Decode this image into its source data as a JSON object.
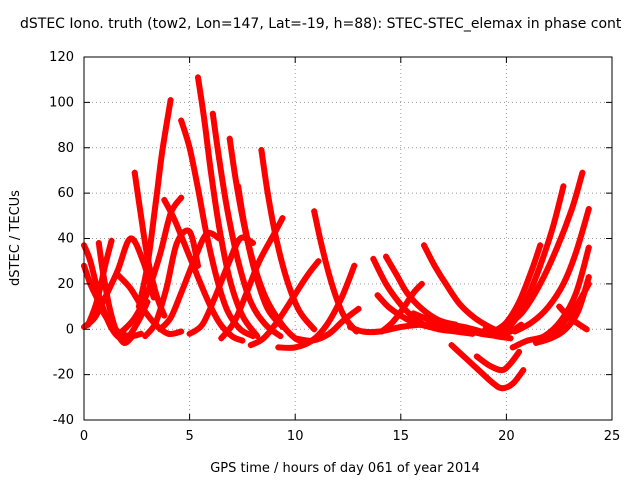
{
  "chart_data": {
    "type": "line",
    "title": "dSTEC Iono. truth (tow2, Lon=147, Lat=-19, h=88): STEC-STEC_elemax in phase cont",
    "xlabel": "GPS time / hours of day 061 of year 2014",
    "ylabel": "dSTEC  / TECUs",
    "xlim": [
      0,
      25
    ],
    "ylim": [
      -40,
      120
    ],
    "x_ticks": [
      "0",
      "5",
      "10",
      "15",
      "20",
      "25"
    ],
    "y_ticks": [
      "-40",
      "-20",
      "0",
      "20",
      "40",
      "60",
      "80",
      "100",
      "120"
    ],
    "grid": true,
    "series_color": "#ff0000",
    "series": [
      {
        "x": [
          0.0,
          0.3,
          0.8,
          1.4,
          2.0,
          2.6,
          3.0
        ],
        "y": [
          37,
          30,
          12,
          -1,
          -4,
          4,
          12
        ]
      },
      {
        "x": [
          0.0,
          0.5,
          1.0,
          1.6,
          2.2,
          2.8,
          3.3
        ],
        "y": [
          1,
          5,
          14,
          26,
          40,
          30,
          14
        ]
      },
      {
        "x": [
          0.0,
          0.3,
          0.6,
          1.0,
          1.6,
          2.2,
          2.7
        ],
        "y": [
          28,
          20,
          14,
          6,
          -1,
          -3,
          -2
        ]
      },
      {
        "x": [
          0.7,
          0.9,
          1.2,
          1.5,
          1.9,
          2.3
        ],
        "y": [
          38,
          25,
          10,
          0,
          -6,
          -3
        ]
      },
      {
        "x": [
          0.2,
          0.6,
          1.0,
          1.3
        ],
        "y": [
          2,
          12,
          28,
          39
        ]
      },
      {
        "x": [
          1.6,
          2.2,
          2.8,
          3.4,
          4.0,
          4.6
        ],
        "y": [
          24,
          18,
          9,
          2,
          -2,
          -1
        ]
      },
      {
        "x": [
          2.4,
          2.7,
          3.0,
          3.4,
          3.8
        ],
        "y": [
          69,
          50,
          32,
          16,
          6
        ]
      },
      {
        "x": [
          1.8,
          2.4,
          3.0,
          3.6,
          4.1,
          4.6
        ],
        "y": [
          -1,
          5,
          16,
          33,
          51,
          58
        ]
      },
      {
        "x": [
          3.8,
          4.3,
          5.0,
          5.8,
          6.4,
          7.0,
          7.5
        ],
        "y": [
          57,
          48,
          32,
          14,
          3,
          -3,
          -5
        ]
      },
      {
        "x": [
          2.6,
          3.0,
          3.4,
          3.7,
          4.1
        ],
        "y": [
          10,
          28,
          56,
          78,
          101
        ]
      },
      {
        "x": [
          2.9,
          3.4,
          3.9,
          4.4,
          5.0,
          5.4
        ],
        "y": [
          -3,
          3,
          18,
          38,
          43,
          28
        ]
      },
      {
        "x": [
          3.6,
          4.1,
          4.6,
          5.2,
          5.8,
          6.4
        ],
        "y": [
          0,
          5,
          16,
          30,
          42,
          40
        ]
      },
      {
        "x": [
          4.6,
          5.0,
          5.4,
          5.8,
          6.3,
          6.8,
          7.4,
          8.0
        ],
        "y": [
          92,
          80,
          62,
          42,
          22,
          8,
          0,
          -3
        ]
      },
      {
        "x": [
          5.4,
          5.7,
          6.0,
          6.4,
          6.9,
          7.5,
          8.2
        ],
        "y": [
          111,
          92,
          70,
          45,
          22,
          6,
          -3
        ]
      },
      {
        "x": [
          6.1,
          6.4,
          6.8,
          7.3,
          7.9,
          8.6,
          9.3
        ],
        "y": [
          95,
          75,
          52,
          30,
          12,
          2,
          -3
        ]
      },
      {
        "x": [
          6.9,
          7.2,
          7.6,
          8.1,
          8.7,
          9.4
        ],
        "y": [
          84,
          65,
          45,
          25,
          9,
          1
        ]
      },
      {
        "x": [
          7.3,
          7.6,
          8.0,
          8.6,
          9.3,
          10.0,
          10.6
        ],
        "y": [
          63,
          46,
          30,
          14,
          3,
          -4,
          -6
        ]
      },
      {
        "x": [
          8.4,
          8.7,
          9.1,
          9.6,
          10.2,
          10.9
        ],
        "y": [
          79,
          60,
          40,
          22,
          8,
          0
        ]
      },
      {
        "x": [
          5.0,
          5.6,
          6.2,
          6.8,
          7.4,
          8.0
        ],
        "y": [
          -2,
          2,
          14,
          28,
          40,
          38
        ]
      },
      {
        "x": [
          6.5,
          7.1,
          7.7,
          8.3,
          9.0,
          9.4
        ],
        "y": [
          -4,
          3,
          16,
          30,
          42,
          49
        ]
      },
      {
        "x": [
          7.9,
          8.5,
          9.2,
          9.9,
          10.6,
          11.1
        ],
        "y": [
          -7,
          -4,
          4,
          14,
          24,
          30
        ]
      },
      {
        "x": [
          10.9,
          11.3,
          11.8,
          12.3,
          12.9
        ],
        "y": [
          52,
          35,
          18,
          6,
          -1
        ]
      },
      {
        "x": [
          9.2,
          10.0,
          10.8,
          11.5,
          12.2,
          12.8
        ],
        "y": [
          -8,
          -8,
          -5,
          2,
          14,
          28
        ]
      },
      {
        "x": [
          10.0,
          10.8,
          11.6,
          12.3,
          13.0
        ],
        "y": [
          -4,
          -5,
          -2,
          4,
          9
        ]
      },
      {
        "x": [
          12.6,
          13.2,
          14.0,
          15.0,
          16.0,
          16.6
        ],
        "y": [
          1,
          -1,
          -1,
          1,
          2,
          1
        ]
      },
      {
        "x": [
          13.9,
          14.4,
          15.0,
          15.6,
          16.4,
          17.2
        ],
        "y": [
          15,
          10,
          6,
          3,
          1,
          0
        ]
      },
      {
        "x": [
          14.3,
          14.8,
          15.3,
          16.0,
          16.8,
          17.6
        ],
        "y": [
          32,
          24,
          16,
          9,
          4,
          2
        ]
      },
      {
        "x": [
          13.7,
          14.3,
          14.9,
          15.5,
          16.1,
          16.8,
          17.6,
          18.4
        ],
        "y": [
          31,
          20,
          12,
          6,
          2,
          0,
          -1,
          -2
        ]
      },
      {
        "x": [
          14.1,
          14.6,
          15.1,
          15.6,
          16.0
        ],
        "y": [
          -1,
          3,
          9,
          16,
          20
        ]
      },
      {
        "x": [
          16.1,
          16.6,
          17.2,
          17.8,
          18.5,
          19.2,
          19.9
        ],
        "y": [
          37,
          28,
          19,
          11,
          5,
          1,
          -2
        ]
      },
      {
        "x": [
          15.6,
          16.4,
          17.2,
          18.0,
          18.8,
          19.6
        ],
        "y": [
          7,
          4,
          2,
          0,
          -2,
          -3
        ]
      },
      {
        "x": [
          16.3,
          17.2,
          18.0,
          18.8,
          19.5,
          20.2
        ],
        "y": [
          4,
          2,
          1,
          -1,
          -3,
          -4
        ]
      },
      {
        "x": [
          17.4,
          18.1,
          18.8,
          19.4,
          19.8,
          20.3,
          20.8
        ],
        "y": [
          -7,
          -13,
          -19,
          -24,
          -26,
          -24,
          -18
        ]
      },
      {
        "x": [
          18.6,
          19.2,
          19.8,
          20.2,
          20.6
        ],
        "y": [
          -12,
          -16,
          -18,
          -15,
          -10
        ]
      },
      {
        "x": [
          19.4,
          20.0,
          20.6,
          21.2,
          21.6
        ],
        "y": [
          -1,
          3,
          12,
          26,
          37
        ]
      },
      {
        "x": [
          19.8,
          20.4,
          21.0,
          21.6,
          22.2,
          22.7
        ],
        "y": [
          -2,
          4,
          14,
          28,
          45,
          63
        ]
      },
      {
        "x": [
          20.1,
          20.8,
          21.6,
          22.4,
          23.1,
          23.6
        ],
        "y": [
          2,
          8,
          20,
          36,
          53,
          69
        ]
      },
      {
        "x": [
          20.4,
          21.2,
          22.0,
          22.7,
          23.3,
          23.9
        ],
        "y": [
          -1,
          3,
          10,
          20,
          34,
          53
        ]
      },
      {
        "x": [
          20.3,
          21.0,
          21.8,
          22.6,
          23.3,
          23.9
        ],
        "y": [
          -8,
          -5,
          -3,
          4,
          16,
          36
        ]
      },
      {
        "x": [
          21.4,
          22.1,
          22.8,
          23.4,
          23.9
        ],
        "y": [
          -6,
          -4,
          0,
          8,
          23
        ]
      },
      {
        "x": [
          22.2,
          22.8,
          23.3,
          23.9
        ],
        "y": [
          -3,
          4,
          10,
          20
        ]
      },
      {
        "x": [
          22.5,
          22.9,
          23.3,
          23.8
        ],
        "y": [
          10,
          6,
          3,
          0
        ]
      },
      {
        "x": [
          19.0,
          19.6,
          20.2,
          20.7
        ],
        "y": [
          0,
          -2,
          -1,
          2
        ]
      }
    ]
  }
}
